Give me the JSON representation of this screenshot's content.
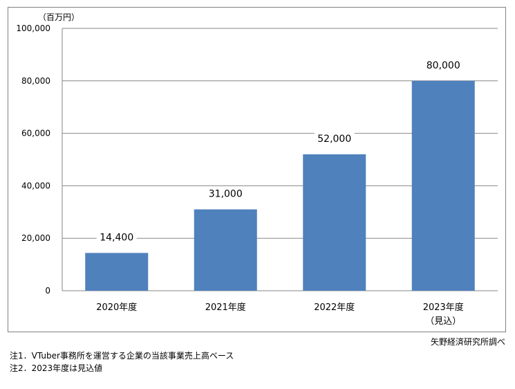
{
  "chart_data": {
    "type": "bar",
    "categories": [
      "2020年度",
      "2021年度",
      "2022年度",
      "2023年度"
    ],
    "category_sublabels": [
      "",
      "",
      "",
      "（見込）"
    ],
    "values": [
      14400,
      31000,
      52000,
      80000
    ],
    "data_labels": [
      "14,400",
      "31,000",
      "52,000",
      "80,000"
    ],
    "yticks": [
      "0",
      "20,000",
      "40,000",
      "60,000",
      "80,000",
      "100,000"
    ],
    "ytick_values": [
      0,
      20000,
      40000,
      60000,
      80000,
      100000
    ],
    "ylim": [
      0,
      100000
    ],
    "unit_label": "（百万円）",
    "grid": true,
    "bar_color": "#4f81bd"
  },
  "source": "矢野経済研究所調べ",
  "notes": [
    "注1．VTuber事務所を運営する企業の当該事業売上高ベース",
    "注2．2023年度は見込値"
  ]
}
